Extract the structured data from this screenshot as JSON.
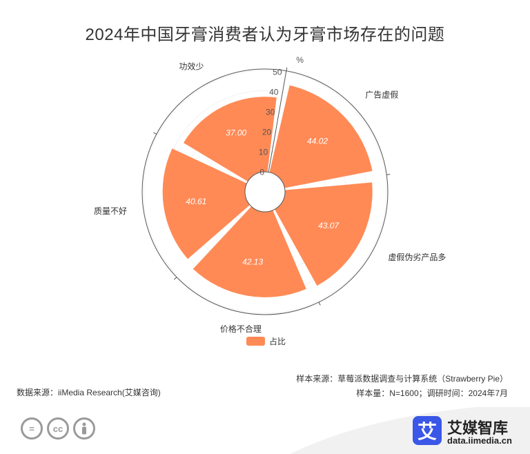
{
  "title": "2024年中国牙膏消费者认为牙膏市场存在的问题",
  "chart_data": {
    "type": "polar-bar",
    "unit": "%",
    "categories": [
      "广告虚假",
      "虚假伪劣产品多",
      "价格不合理",
      "质量不好",
      "功效少"
    ],
    "series": [
      {
        "name": "占比",
        "values": [
          44.02,
          43.07,
          42.13,
          40.61,
          37.0
        ],
        "value_labels": [
          "44.02",
          "43.07",
          "42.13",
          "40.61",
          "37.00"
        ]
      }
    ],
    "radial_axis": {
      "min": 0,
      "max": 50,
      "ticks": [
        "0",
        "10",
        "20",
        "30",
        "40",
        "50"
      ]
    },
    "bar_color": "#FF8A56",
    "legend": "bottom-center"
  },
  "source_notes": {
    "sample_source": "样本来源：草莓派数据调查与计算系统（Strawberry Pie）",
    "sample_info": "样本量：N=1600；调研时间：2024年7月",
    "data_source": "数据来源：iiMedia Research(艾媒咨询)"
  },
  "brand": {
    "logo_char": "艾",
    "name": "艾媒智库",
    "url": "data.iimedia.cn"
  },
  "license_icons": [
    "=",
    "cc",
    "person"
  ]
}
